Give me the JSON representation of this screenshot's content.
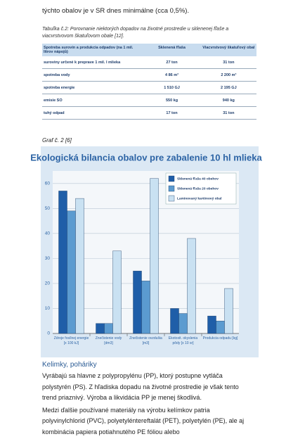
{
  "intro": "týchto obalov je v SR dnes minimálne (cca 0,5%).",
  "table": {
    "caption": "Tabuľka č.2: Porovnanie niektorých dopadov na životné prostredie u sklenenej fľaše a viacvrstvovom škatuľovom obale [12].",
    "header": [
      "Spotreba surovín a produkcia odpadov (na 1 mil. litrov nápojů)",
      "Sklenená fľaša",
      "Viacvrstvový škatuľový obal"
    ],
    "rows": [
      [
        "suroviny určené k preprave 1 mil. l mlieka",
        "27 ton",
        "31 ton"
      ],
      [
        "spotreba vody",
        "4 86 m³",
        "2 200 m³"
      ],
      [
        "spotreba energie",
        "1 510 GJ",
        "2 195 GJ"
      ],
      [
        "emisie SO",
        "550 kg",
        "940 kg"
      ],
      [
        "tuhý odpad",
        "17 ton",
        "31 ton"
      ]
    ]
  },
  "graph_caption": "Graf č. 2 [6]",
  "chart_data": {
    "type": "bar",
    "title": "Ekologická bilancia obalov pre zabalenie 10 hl mlieka",
    "categories": [
      "Zdroje fosílnej energie [x 100 kJ]",
      "Znečistenie vody [dm3]",
      "Znečistenie ovzdušia [m3]",
      "Ekotoxit. okyslenia pôdy [x 10 sr]",
      "Produkcia odpadu [kg]"
    ],
    "series": [
      {
        "name": "Sklenená fľaša 40 obehov",
        "color": "#1f5ea8",
        "values": [
          57,
          4,
          25,
          10,
          7
        ]
      },
      {
        "name": "Sklenená fľaša 20 obehov",
        "color": "#5b9bd0",
        "values": [
          49,
          4,
          21,
          8,
          5
        ]
      },
      {
        "name": "Laminovaný kartónový obal",
        "color": "#c9e1f2",
        "values": [
          54,
          33,
          62,
          38,
          18
        ]
      }
    ],
    "ylim": [
      0,
      65
    ],
    "yticks": [
      0,
      10,
      20,
      30,
      40,
      50,
      60
    ],
    "grid": true,
    "legend": "top-right"
  },
  "section": {
    "heading": "Kelimky, poháriky",
    "paragraphs": [
      "Vyrábajú sa hlavne z polypropylénu (PP), ktorý postupne vytláča polystyrén (PS). Z hľadiska dopadu na životné prostredie je však tento trend priaznivý. Výroba a likvidácia PP je menej škodlivá.",
      "Medzi ďalšie používané materiály na výrobu kelímkov patria polyvinylchlorid (PVC), polyetyléntereftalát (PET), polyetylén (PE), ale aj kombinácia papiera potiahnutého PE fóliou alebo"
    ]
  }
}
